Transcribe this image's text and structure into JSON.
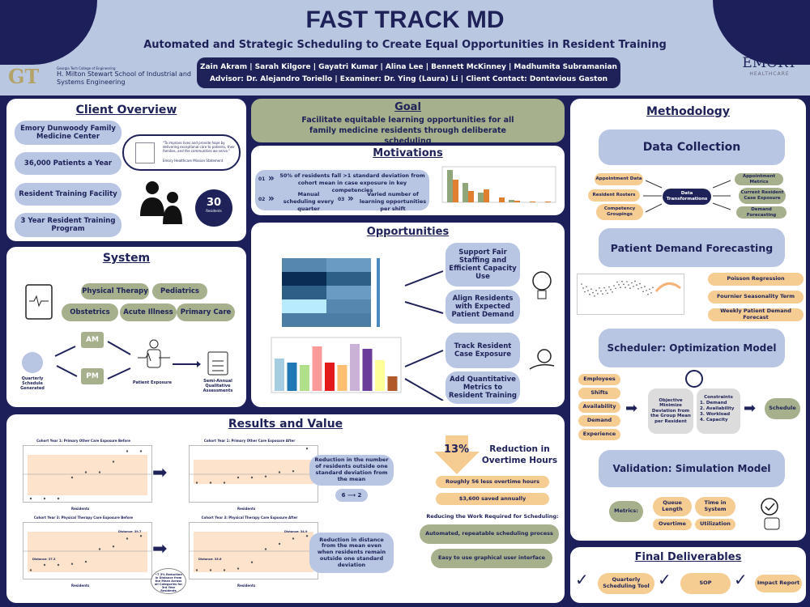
{
  "header": {
    "title": "FAST TRACK MD",
    "subtitle": "Automated and Strategic Scheduling to Create Equal Opportunities in Resident Training",
    "team": "Zain Akram | Sarah Kilgore | Gayatri Kumar | Alina Lee | Bennett McKinney | Madhumita Subramanian",
    "advisors": "Advisor: Dr. Alejandro Toriello | Examiner: Dr. Ying (Laura) Li | Client Contact: Dontavious Gaston",
    "gt_logo": "GT",
    "gt_college": "Georgia Tech College of Engineering",
    "gt_school": "H. Milton Stewart School of Industrial and Systems Engineering",
    "emory_logo": "EMORY",
    "emory_sub": "HEALTHCARE"
  },
  "client": {
    "title": "Client Overview",
    "items": [
      "Emory Dunwoody Family Medicine Center",
      "36,000 Patients a Year",
      "Resident Training Facility",
      "3 Year Resident Training Program"
    ],
    "mission": "\"To improve lives and provide hope by delivering exceptional care to patients, their families, and the communities we serve.\"",
    "mission_source": "Emory Healthcare Mission Statement",
    "residents_count": "30",
    "residents_label": "Residents"
  },
  "system": {
    "title": "System",
    "specialties": [
      "Physical Therapy",
      "Pediatrics",
      "Obstetrics",
      "Acute Illness",
      "Primary Care"
    ],
    "am": "AM",
    "pm": "PM",
    "schedule_label": "Quarterly Schedule Generated",
    "exposure_label": "Patient Exposure",
    "assessment_label": "Semi-Annual Qualitative Assessments"
  },
  "goal": {
    "title": "Goal",
    "text": "Facilitate equitable learning opportunities for all family medicine residents through deliberate scheduling"
  },
  "motivations": {
    "title": "Motivations",
    "items": [
      {
        "num": "01",
        "text": "50% of residents fall >1 standard deviation from cohort mean in case exposure in key competencies"
      },
      {
        "num": "02",
        "text": "Manual scheduling every quarter"
      },
      {
        "num": "03",
        "text": "Varied number of learning opportunities per shift"
      }
    ]
  },
  "opportunities": {
    "title": "Opportunities",
    "items": [
      "Support Fair Staffing and Efficient Capacity Use",
      "Align Residents with Expected Patient Demand",
      "Track Resident Case Exposure",
      "Add Quantitative Metrics to Resident Training"
    ]
  },
  "methodology": {
    "title": "Methodology",
    "data_collection": "Data Collection",
    "inputs": [
      "Appointment Data",
      "Resident Rosters",
      "Competency Groupings"
    ],
    "transform": "Data Transformations",
    "outputs": [
      "Appointment Metrics",
      "Current Resident Case Exposure",
      "Demand Forecasting"
    ],
    "forecasting": "Patient Demand Forecasting",
    "forecast_items": [
      "Poisson Regression",
      "Fournier Seasonality Term",
      "Weekly Patient Demand Forecast"
    ],
    "scheduler": "Scheduler: Optimization Model",
    "sched_inputs": [
      "Employees",
      "Shifts",
      "Availability",
      "Demand",
      "Experience"
    ],
    "objective": "Objective Minimize Deviation from the Group Mean per Resident",
    "constraints_title": "Constraints",
    "constraints": [
      "1. Demand",
      "2. Availability",
      "3. Workload",
      "4. Capacity"
    ],
    "schedule": "Schedule",
    "validation": "Validation: Simulation Model",
    "metrics_label": "Metrics:",
    "metrics": [
      "Queue Length",
      "Time in System",
      "Overtime",
      "Utilization"
    ]
  },
  "deliverables": {
    "title": "Final Deliverables",
    "items": [
      "Quarterly Scheduling Tool",
      "SOP",
      "Impact Report"
    ]
  },
  "results": {
    "title": "Results and Value",
    "charts": [
      {
        "title": "Cohort Year 1: Primary Other Care Exposure Before"
      },
      {
        "title": "Cohort Year 1: Primary Other Care Exposure After"
      },
      {
        "title": "Cohort Year 3: Physical Therapy Care Exposure Before",
        "dist_low": "Distance: 37.3",
        "dist_high": "Distance: 39.7"
      },
      {
        "title": "Cohort Year 3: Physical Therapy Care Exposure After",
        "dist_low": "Distance: 35.6",
        "dist_high": "Distance: 34.9"
      }
    ],
    "xlabel": "Residents",
    "ylabel": "Patients Seen",
    "annotation": "~7.3% Reduction in Distance from the Mean Across all Categories for 3rd Year Residents",
    "reduction_text": "Reduction in the number of residents outside one standard deviation from the mean",
    "reduction_from": "6",
    "reduction_to": "2",
    "distance_text": "Reduction in distance from the mean even when residents remain outside one standard deviation",
    "overtime_pct": "13%",
    "overtime_label": "Reduction in Overtime Hours",
    "overtime_hours": "Roughly 56 less overtime hours",
    "savings": "$3,600 saved annually",
    "work_title": "Reducing the Work Required for Scheduling:",
    "work_items": [
      "Automated, repeatable scheduling process",
      "Easy to use graphical user interface"
    ]
  },
  "colors": {
    "navy": "#1c1f5a",
    "light_blue": "#b8c6e3",
    "green": "#a6b08c",
    "orange": "#f5cd93"
  }
}
